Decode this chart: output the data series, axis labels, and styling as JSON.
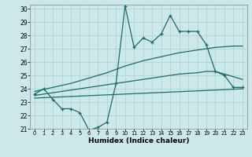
{
  "xlabel": "Humidex (Indice chaleur)",
  "background_color": "#cce8e8",
  "line_color": "#1a6b6b",
  "grid_color": "#aad0d0",
  "xlim": [
    -0.5,
    23.5
  ],
  "ylim": [
    21.0,
    30.3
  ],
  "yticks": [
    21,
    22,
    23,
    24,
    25,
    26,
    27,
    28,
    29,
    30
  ],
  "xticks": [
    0,
    1,
    2,
    3,
    4,
    5,
    6,
    7,
    8,
    9,
    10,
    11,
    12,
    13,
    14,
    15,
    16,
    17,
    18,
    19,
    20,
    21,
    22,
    23
  ],
  "main_x": [
    0,
    1,
    2,
    3,
    4,
    5,
    6,
    7,
    8,
    9,
    10,
    11,
    12,
    13,
    14,
    15,
    16,
    17,
    18,
    19,
    20,
    21,
    22,
    23
  ],
  "main_y": [
    23.6,
    24.0,
    23.2,
    22.5,
    22.5,
    22.2,
    20.9,
    21.1,
    21.5,
    24.4,
    30.2,
    27.1,
    27.8,
    27.5,
    28.1,
    29.5,
    28.3,
    28.3,
    28.3,
    27.3,
    25.3,
    25.0,
    24.1,
    24.1
  ],
  "upper_x": [
    0,
    2,
    4,
    6,
    8,
    10,
    12,
    14,
    16,
    18,
    20,
    22,
    23
  ],
  "upper_y": [
    23.8,
    24.1,
    24.4,
    24.8,
    25.2,
    25.7,
    26.1,
    26.4,
    26.7,
    26.9,
    27.1,
    27.2,
    27.2
  ],
  "mid_x": [
    0,
    2,
    4,
    6,
    8,
    10,
    12,
    14,
    16,
    18,
    19,
    20,
    21,
    22,
    23
  ],
  "mid_y": [
    23.5,
    23.7,
    23.9,
    24.1,
    24.3,
    24.5,
    24.7,
    24.9,
    25.1,
    25.2,
    25.3,
    25.3,
    25.1,
    24.9,
    24.7
  ],
  "lower_x": [
    0,
    5,
    10,
    15,
    20,
    23
  ],
  "lower_y": [
    23.3,
    23.45,
    23.6,
    23.75,
    23.9,
    24.0
  ]
}
